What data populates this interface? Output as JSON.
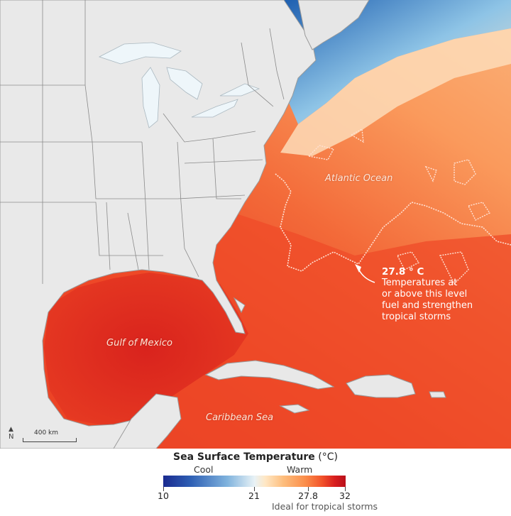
{
  "map": {
    "labels": {
      "atlantic": "Atlantic Ocean",
      "gulf": "Gulf of Mexico",
      "caribbean": "Caribbean Sea"
    },
    "annotation": {
      "value": "27.8 ° C",
      "line1": "Temperatures at",
      "line2": "or above this level",
      "line3": "fuel and strengthen",
      "line4": "tropical storms"
    },
    "scale_bar": "400 km",
    "north_symbol": "N"
  },
  "legend": {
    "title_bold": "Sea Surface Temperature",
    "title_unit": " (°C)",
    "cool": "Cool",
    "warm": "Warm",
    "ticks": [
      "10",
      "21",
      "27.8",
      "32"
    ],
    "ideal_note": "Ideal for tropical storms",
    "colors": {
      "cold": "#1a2a8f",
      "mid": "#e8f2f6",
      "warm": "#fb8d4a",
      "hot": "#d81e1e"
    }
  }
}
